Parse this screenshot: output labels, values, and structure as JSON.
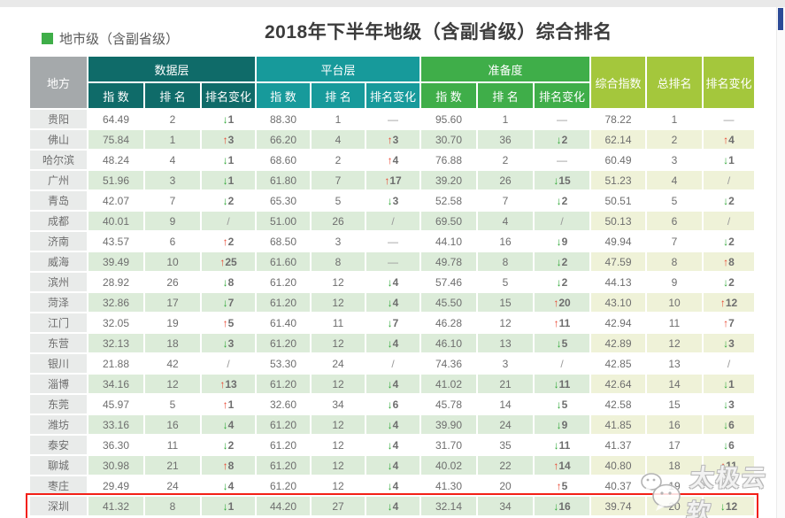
{
  "page": {
    "section_label": "地市级（含副省级）",
    "watermark_label": "太极云软"
  },
  "colors": {
    "data_layer": "#0f6b69",
    "platform_layer": "#179a9b",
    "readiness": "#3fae49",
    "summary": "#a4c73c",
    "place_header": "#a5a9ab",
    "up_arrow": "#e8432d",
    "down_arrow": "#2ea836",
    "highlight_border": "#f32017",
    "stripe_green": "#dcecd9",
    "stripe_yellow": "#eff2d8",
    "label_square": "#3fae49",
    "scroll_thumb": "#2d4b97"
  },
  "chart_data": {
    "type": "table",
    "title": "2018年下半年地级（含副省级）综合排名",
    "corner_header": "地方",
    "column_groups": [
      {
        "label": "数据层",
        "color": "#0f6b69"
      },
      {
        "label": "平台层",
        "color": "#179a9b"
      },
      {
        "label": "准备度",
        "color": "#3fae49"
      }
    ],
    "sub_headers": [
      "指 数",
      "排 名",
      "排名变化"
    ],
    "summary_headers": [
      "综合指数",
      "总排名",
      "排名变化"
    ],
    "change_note": "cells coded u=up(red) d=down(green), — no change, / not applicable, empty = obscured by watermark",
    "rows": [
      {
        "place": "贵阳",
        "values": [
          "64.49",
          "2",
          "d1",
          "88.30",
          "1",
          "—",
          "95.60",
          "1",
          "—",
          "78.22",
          "1",
          "—"
        ]
      },
      {
        "place": "佛山",
        "values": [
          "75.84",
          "1",
          "u3",
          "66.20",
          "4",
          "u3",
          "30.70",
          "36",
          "d2",
          "62.14",
          "2",
          "u4"
        ]
      },
      {
        "place": "哈尔滨",
        "values": [
          "48.24",
          "4",
          "d1",
          "68.60",
          "2",
          "u4",
          "76.88",
          "2",
          "—",
          "60.49",
          "3",
          "d1"
        ]
      },
      {
        "place": "广州",
        "values": [
          "51.96",
          "3",
          "d1",
          "61.80",
          "7",
          "u17",
          "39.20",
          "26",
          "d15",
          "51.23",
          "4",
          "/"
        ]
      },
      {
        "place": "青岛",
        "values": [
          "42.07",
          "7",
          "d2",
          "65.30",
          "5",
          "d3",
          "52.58",
          "7",
          "d2",
          "50.51",
          "5",
          "d2"
        ]
      },
      {
        "place": "成都",
        "values": [
          "40.01",
          "9",
          "/",
          "51.00",
          "26",
          "/",
          "69.50",
          "4",
          "/",
          "50.13",
          "6",
          "/"
        ]
      },
      {
        "place": "济南",
        "values": [
          "43.57",
          "6",
          "u2",
          "68.50",
          "3",
          "—",
          "44.10",
          "16",
          "d9",
          "49.94",
          "7",
          "d2"
        ]
      },
      {
        "place": "威海",
        "values": [
          "39.49",
          "10",
          "u25",
          "61.60",
          "8",
          "—",
          "49.78",
          "8",
          "d2",
          "47.59",
          "8",
          "u8"
        ]
      },
      {
        "place": "滨州",
        "values": [
          "28.92",
          "26",
          "d8",
          "61.20",
          "12",
          "d4",
          "57.46",
          "5",
          "d2",
          "44.13",
          "9",
          "d2"
        ]
      },
      {
        "place": "菏泽",
        "values": [
          "32.86",
          "17",
          "d7",
          "61.20",
          "12",
          "d4",
          "45.50",
          "15",
          "u20",
          "43.10",
          "10",
          "u12"
        ]
      },
      {
        "place": "江门",
        "values": [
          "32.05",
          "19",
          "u5",
          "61.40",
          "11",
          "d7",
          "46.28",
          "12",
          "u11",
          "42.94",
          "11",
          "u7"
        ]
      },
      {
        "place": "东营",
        "values": [
          "32.13",
          "18",
          "d3",
          "61.20",
          "12",
          "d4",
          "46.10",
          "13",
          "d5",
          "42.89",
          "12",
          "d3"
        ]
      },
      {
        "place": "银川",
        "values": [
          "21.88",
          "42",
          "/",
          "53.30",
          "24",
          "/",
          "74.36",
          "3",
          "/",
          "42.85",
          "13",
          "/"
        ]
      },
      {
        "place": "淄博",
        "values": [
          "34.16",
          "12",
          "u13",
          "61.20",
          "12",
          "d4",
          "41.02",
          "21",
          "d11",
          "42.64",
          "14",
          "d1"
        ]
      },
      {
        "place": "东莞",
        "values": [
          "45.97",
          "5",
          "u1",
          "32.60",
          "34",
          "d6",
          "45.78",
          "14",
          "d5",
          "42.58",
          "15",
          "d3"
        ]
      },
      {
        "place": "潍坊",
        "values": [
          "33.16",
          "16",
          "d4",
          "61.20",
          "12",
          "d4",
          "39.90",
          "24",
          "d9",
          "41.85",
          "16",
          "d6"
        ]
      },
      {
        "place": "泰安",
        "values": [
          "36.30",
          "11",
          "d2",
          "61.20",
          "12",
          "d4",
          "31.70",
          "35",
          "d11",
          "41.37",
          "17",
          "d6"
        ]
      },
      {
        "place": "聊城",
        "values": [
          "30.98",
          "21",
          "u8",
          "61.20",
          "12",
          "d4",
          "40.02",
          "22",
          "u14",
          "40.80",
          "18",
          "u11"
        ]
      },
      {
        "place": "枣庄",
        "values": [
          "29.49",
          "24",
          "d4",
          "61.20",
          "12",
          "d4",
          "41.30",
          "20",
          "u5",
          "40.37",
          "19",
          ""
        ]
      },
      {
        "place": "深圳",
        "values": [
          "41.32",
          "8",
          "d1",
          "44.20",
          "27",
          "d4",
          "32.14",
          "34",
          "d16",
          "39.74",
          "20",
          "d12"
        ],
        "highlighted": true
      }
    ]
  }
}
